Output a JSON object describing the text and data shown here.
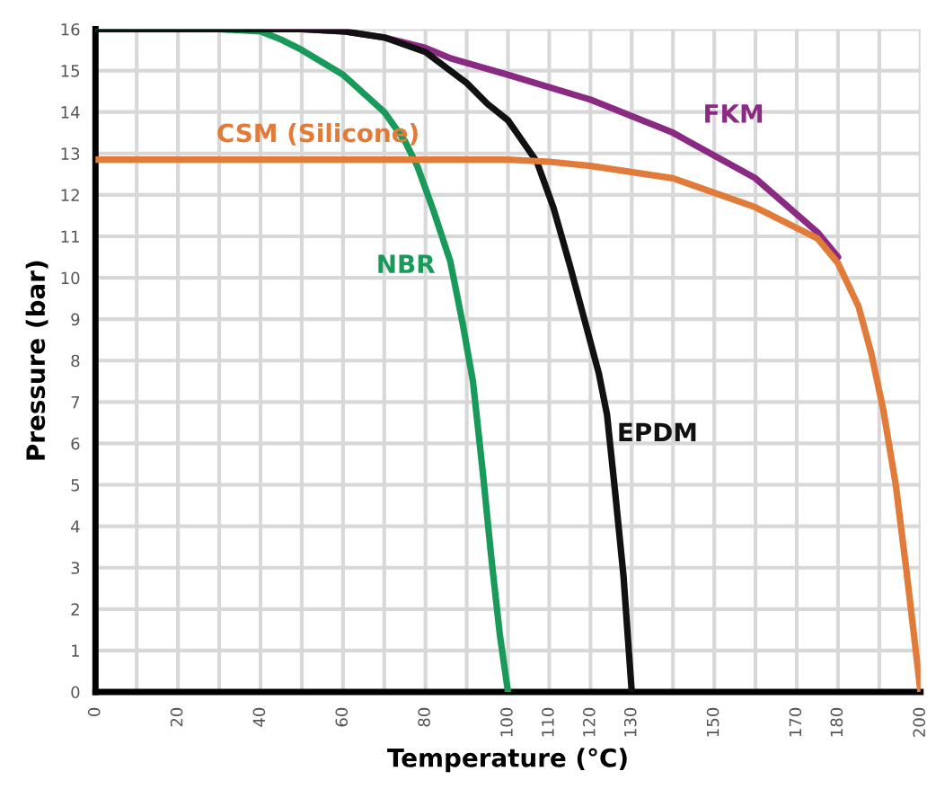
{
  "chart_data": {
    "type": "line",
    "xlabel": "Temperature (°C)",
    "ylabel": "Pressure (bar)",
    "xlim": [
      0,
      200
    ],
    "ylim": [
      0,
      16
    ],
    "xticks": [
      0,
      {
        "value": 10,
        "label": null
      },
      20,
      {
        "value": 30,
        "label": null
      },
      40,
      {
        "value": 50,
        "label": null
      },
      60,
      {
        "value": 70,
        "label": null
      },
      80,
      {
        "value": 90,
        "label": null
      },
      100,
      110,
      120,
      130,
      {
        "value": 140,
        "label": null
      },
      150,
      {
        "value": 160,
        "label": null
      },
      170,
      180,
      {
        "value": 190,
        "label": null
      },
      200
    ],
    "yticks": [
      0,
      1,
      2,
      3,
      4,
      5,
      6,
      7,
      8,
      9,
      10,
      11,
      12,
      13,
      14,
      15,
      16
    ],
    "grid": true,
    "legend": false,
    "marker": "none",
    "line_style": "solid",
    "series": [
      {
        "name": "CSM (Silicone)",
        "color": "#e07b39",
        "x": [
          0,
          60,
          100,
          110,
          120,
          140,
          160,
          175,
          180,
          185,
          188,
          191,
          194,
          196.5,
          198.5,
          200
        ],
        "values": [
          12.85,
          12.85,
          12.85,
          12.8,
          12.7,
          12.4,
          11.7,
          10.95,
          10.35,
          9.3,
          8.2,
          6.8,
          5.0,
          3.0,
          1.3,
          0
        ]
      },
      {
        "name": "FKM",
        "color": "#8b2a82",
        "x": [
          0,
          50,
          60,
          70,
          80,
          86,
          100,
          120,
          140,
          160,
          175,
          180
        ],
        "values": [
          16,
          16,
          15.95,
          15.8,
          15.55,
          15.3,
          14.9,
          14.3,
          13.5,
          12.4,
          11.1,
          10.5
        ]
      },
      {
        "name": "NBR",
        "color": "#1a9a5a",
        "x": [
          0,
          30,
          40,
          45,
          50,
          60,
          70,
          75,
          78,
          82,
          86,
          89,
          91.5,
          94,
          96,
          98,
          100
        ],
        "values": [
          16,
          16,
          15.95,
          15.75,
          15.5,
          14.9,
          14.0,
          13.3,
          12.7,
          11.6,
          10.4,
          8.9,
          7.5,
          5.2,
          3.2,
          1.4,
          0
        ]
      },
      {
        "name": "EPDM",
        "color": "#111111",
        "x": [
          0,
          50,
          60,
          70,
          80,
          90,
          95,
          100,
          107,
          111,
          115,
          122,
          124,
          126,
          128,
          130
        ],
        "values": [
          16,
          16,
          15.95,
          15.8,
          15.45,
          14.7,
          14.2,
          13.8,
          12.8,
          11.7,
          10.3,
          7.7,
          6.7,
          4.8,
          2.8,
          0
        ]
      }
    ]
  }
}
